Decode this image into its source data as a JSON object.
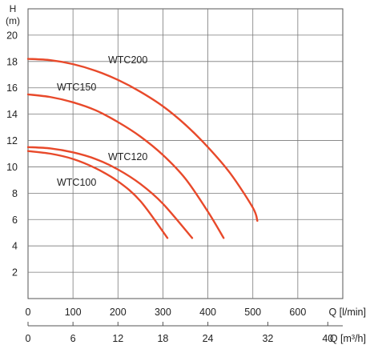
{
  "chart_data": {
    "type": "line",
    "ylabel_letter": "H",
    "ylabel_unit": "(m)",
    "xlabel_primary": "Q [l/min]",
    "xlabel_secondary": "Q [m³/h]",
    "x_primary_ticks": [
      "0",
      "100",
      "200",
      "300",
      "400",
      "500",
      "600"
    ],
    "x_secondary_ticks": [
      "0",
      "6",
      "12",
      "18",
      "24",
      "32",
      "40"
    ],
    "y_ticks": [
      "2",
      "4",
      "6",
      "8",
      "10",
      "12",
      "14",
      "16",
      "18",
      "20"
    ],
    "xlim": [
      0,
      700
    ],
    "ylim": [
      0,
      22
    ],
    "grid": true,
    "line_color": "#e8492a",
    "series": [
      {
        "name": "WTC200",
        "x": [
          0,
          50,
          100,
          150,
          200,
          250,
          300,
          350,
          400,
          450,
          500,
          510
        ],
        "y": [
          18.2,
          18.1,
          17.8,
          17.3,
          16.6,
          15.7,
          14.6,
          13.2,
          11.5,
          9.5,
          6.9,
          5.9
        ]
      },
      {
        "name": "WTC150",
        "x": [
          0,
          50,
          100,
          150,
          200,
          250,
          300,
          350,
          400,
          435
        ],
        "y": [
          15.5,
          15.3,
          14.9,
          14.3,
          13.4,
          12.3,
          10.9,
          9.1,
          6.6,
          4.6
        ]
      },
      {
        "name": "WTC120",
        "x": [
          0,
          50,
          100,
          150,
          200,
          250,
          300,
          365
        ],
        "y": [
          11.5,
          11.4,
          11.1,
          10.6,
          9.8,
          8.7,
          7.2,
          4.6
        ]
      },
      {
        "name": "WTC100",
        "x": [
          0,
          50,
          100,
          150,
          200,
          250,
          310
        ],
        "y": [
          11.2,
          11.0,
          10.6,
          9.9,
          8.9,
          7.4,
          4.6
        ]
      }
    ]
  }
}
